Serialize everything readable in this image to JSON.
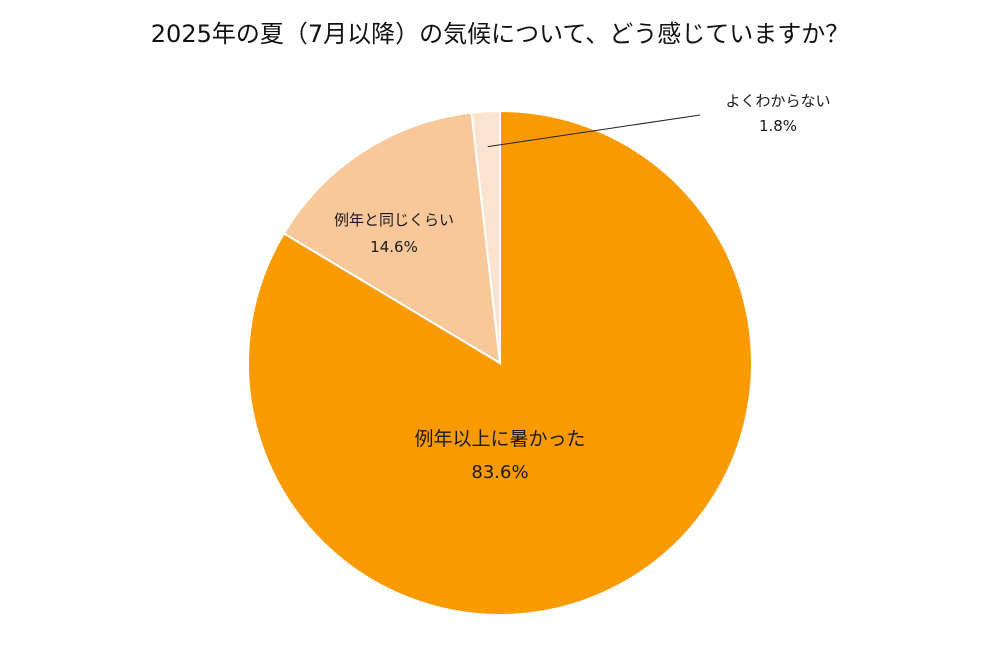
{
  "title": "2025年の夏（7月以降）の気候について、どう感じていますか？",
  "chart_data": {
    "type": "pie",
    "title": "2025年の夏（7月以降）の気候について、どう感じていますか？",
    "slices": [
      {
        "label": "例年以上に暑かった",
        "value": 83.6,
        "value_label": "83.6%",
        "color": "#F99B00"
      },
      {
        "label": "例年と同じくらい",
        "value": 14.6,
        "value_label": "14.6%",
        "color": "#F8C89A"
      },
      {
        "label": "よくわからない",
        "value": 1.8,
        "value_label": "1.8%",
        "color": "#FBE3D0"
      }
    ],
    "start": "12 o'clock",
    "direction": "clockwise",
    "labels": "on-slice; leader line for smallest slice"
  }
}
